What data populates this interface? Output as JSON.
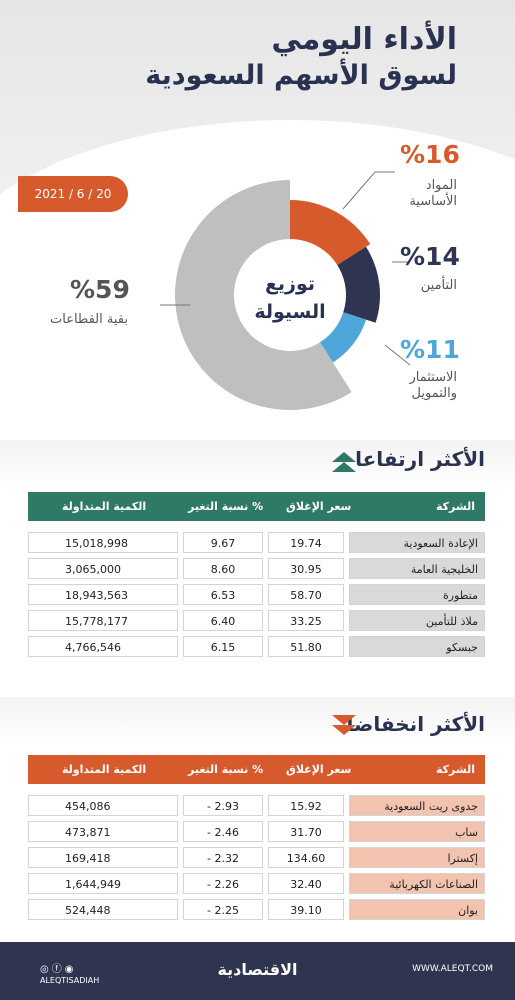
{
  "header": {
    "title_line1": "الأداء اليومي",
    "title_line2": "لسوق الأسهم السعودية",
    "date": "2021 / 6 / 20"
  },
  "chart_data": {
    "type": "pie",
    "title": "توزيع السيولة",
    "center_line1": "توزيع",
    "center_line2": "السيولة",
    "slices": [
      {
        "label": "المواد الأساسية",
        "label_line1": "المواد",
        "label_line2": "الأساسية",
        "value": 16,
        "display": "%16",
        "color": "#d65a2c"
      },
      {
        "label": "التأمين",
        "label_line1": "التأمين",
        "label_line2": "",
        "value": 14,
        "display": "%14",
        "color": "#2f3550"
      },
      {
        "label": "الاستثمار والتمويل",
        "label_line1": "الاستثمار",
        "label_line2": "والتمويل",
        "value": 11,
        "display": "%11",
        "color": "#4fa6d9"
      },
      {
        "label": "بقية القطاعات",
        "label_line1": "بقية القطاعات",
        "label_line2": "",
        "value": 59,
        "display": "%59",
        "color": "#bfbfbf"
      }
    ]
  },
  "gainers": {
    "title": "الأكثر ارتفاعا",
    "headers": {
      "company": "الشركة",
      "close": "سعر الإغلاق",
      "change": "نسبة التغير %",
      "volume": "الكمية المتداولة"
    },
    "rows": [
      {
        "company": "الإعادة السعودية",
        "close": "19.74",
        "change": "9.67",
        "volume": "15,018,998"
      },
      {
        "company": "الخليجية العامة",
        "close": "30.95",
        "change": "8.60",
        "volume": "3,065,000"
      },
      {
        "company": "متطورة",
        "close": "58.70",
        "change": "6.53",
        "volume": "18,943,563"
      },
      {
        "company": "ملاذ للتأمين",
        "close": "33.25",
        "change": "6.40",
        "volume": "15,778,177"
      },
      {
        "company": "جبسكو",
        "close": "51.80",
        "change": "6.15",
        "volume": "4,766,546"
      }
    ],
    "header_color": "#2e7a66",
    "name_cell_color": "#d9d9d9"
  },
  "losers": {
    "title": "الأكثر انخفاضا",
    "headers": {
      "company": "الشركة",
      "close": "سعر الإغلاق",
      "change": "نسبة التغير %",
      "volume": "الكمية المتداولة"
    },
    "rows": [
      {
        "company": "جدوى ريت السعودية",
        "close": "15.92",
        "change": "- 2.93",
        "volume": "454,086"
      },
      {
        "company": "ساب",
        "close": "31.70",
        "change": "- 2.46",
        "volume": "473,871"
      },
      {
        "company": "إكسترا",
        "close": "134.60",
        "change": "- 2.32",
        "volume": "169,418"
      },
      {
        "company": "الصناعات الكهربائية",
        "close": "32.40",
        "change": "- 2.26",
        "volume": "1,644,949"
      },
      {
        "company": "بوان",
        "close": "39.10",
        "change": "- 2.25",
        "volume": "524,448"
      }
    ],
    "header_color": "#d65a2c",
    "name_cell_color": "#f2c3ae"
  },
  "footer": {
    "logo": "الاقتصادية",
    "website": "WWW.ALEQT.COM",
    "handle": "ALEQTISADIAH",
    "social_icons": "◎ⓕ◉"
  }
}
